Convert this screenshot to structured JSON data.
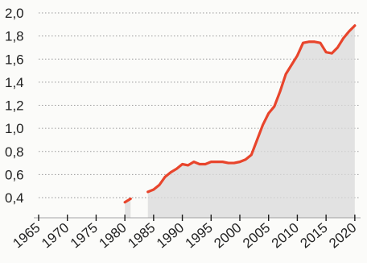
{
  "chart_data": {
    "type": "area",
    "title": "",
    "xlabel": "",
    "ylabel": "",
    "xlim": [
      1965,
      2021
    ],
    "ylim": [
      0.3,
      2.0
    ],
    "x_ticks": [
      1965,
      1970,
      1975,
      1980,
      1985,
      1990,
      1995,
      2000,
      2005,
      2010,
      2015,
      2020
    ],
    "x_tick_labels": [
      "1965",
      "1970",
      "1975",
      "1980",
      "1985",
      "1990",
      "1995",
      "2000",
      "2005",
      "2010",
      "2015",
      "2020"
    ],
    "y_ticks": [
      0.4,
      0.6,
      0.8,
      1.0,
      1.2,
      1.4,
      1.6,
      1.8,
      2.0
    ],
    "y_tick_labels": [
      "0,4",
      "0,6",
      "0,8",
      "1,0",
      "1,2",
      "1,4",
      "1,6",
      "1,8",
      "2,0"
    ],
    "grid": "horizontal dotted",
    "line_color": "#e8452c",
    "fill_color": "#d9d9d9",
    "series": [
      {
        "values": [
          [
            1980,
            0.36
          ],
          [
            1981,
            0.39
          ]
        ]
      },
      {
        "values": [
          [
            1984,
            0.45
          ],
          [
            1985,
            0.47
          ],
          [
            1986,
            0.51
          ],
          [
            1987,
            0.58
          ],
          [
            1988,
            0.62
          ],
          [
            1989,
            0.65
          ],
          [
            1990,
            0.69
          ],
          [
            1991,
            0.68
          ],
          [
            1992,
            0.71
          ],
          [
            1993,
            0.69
          ],
          [
            1994,
            0.69
          ],
          [
            1995,
            0.71
          ],
          [
            1996,
            0.71
          ],
          [
            1997,
            0.71
          ],
          [
            1998,
            0.7
          ],
          [
            1999,
            0.7
          ],
          [
            2000,
            0.71
          ],
          [
            2001,
            0.73
          ],
          [
            2002,
            0.77
          ],
          [
            2003,
            0.9
          ],
          [
            2004,
            1.03
          ],
          [
            2005,
            1.13
          ],
          [
            2006,
            1.19
          ],
          [
            2007,
            1.32
          ],
          [
            2008,
            1.47
          ],
          [
            2009,
            1.55
          ],
          [
            2010,
            1.63
          ],
          [
            2011,
            1.74
          ],
          [
            2012,
            1.75
          ],
          [
            2013,
            1.75
          ],
          [
            2014,
            1.74
          ],
          [
            2015,
            1.66
          ],
          [
            2016,
            1.65
          ],
          [
            2017,
            1.7
          ],
          [
            2018,
            1.78
          ],
          [
            2019,
            1.84
          ],
          [
            2020,
            1.89
          ]
        ]
      }
    ]
  }
}
